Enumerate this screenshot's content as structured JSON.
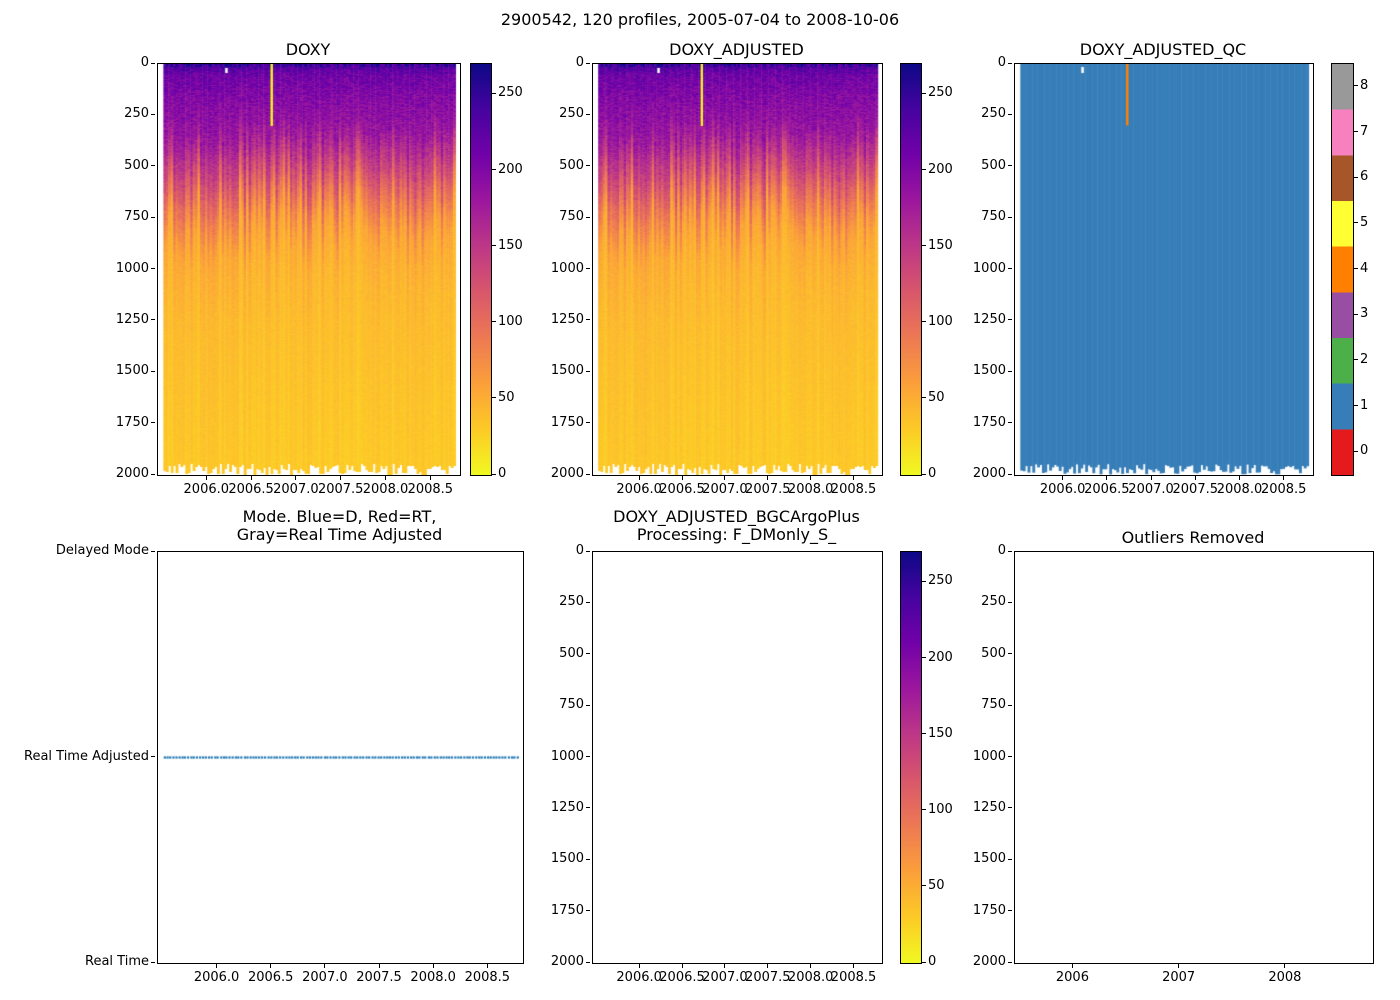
{
  "figure": {
    "suptitle": "2900542, 120 profiles, 2005-07-04 to 2008-10-06"
  },
  "colors": {
    "background": "#ffffff",
    "axis_color": "#000000",
    "plasma_r_stops": [
      "#f0f921",
      "#fdca26",
      "#fb9f3a",
      "#ed7953",
      "#d8576b",
      "#bd3786",
      "#9c179e",
      "#7201a8",
      "#46039f",
      "#0d0887"
    ],
    "qc_palette": [
      "#e41a1c",
      "#377eb8",
      "#4daf4a",
      "#984ea3",
      "#ff7f00",
      "#ffff33",
      "#a65628",
      "#f781bf",
      "#999999"
    ],
    "mode_dot_color": "#1f77b4"
  },
  "chart_data": [
    {
      "type": "heatmap",
      "title": "DOXY",
      "xlim": [
        2005.45,
        2008.82
      ],
      "ylim": [
        2000,
        0
      ],
      "x_ticks": [
        2006.0,
        2006.5,
        2007.0,
        2007.5,
        2008.0,
        2008.5
      ],
      "x_tick_labels": [
        "2006.0",
        "2006.5",
        "2007.0",
        "2007.5",
        "2008.0",
        "2008.5"
      ],
      "y_ticks": [
        0,
        250,
        500,
        750,
        1000,
        1250,
        1500,
        1750,
        2000
      ],
      "y_tick_labels": [
        "0",
        "250",
        "500",
        "750",
        "1000",
        "1250",
        "1500",
        "1750",
        "2000"
      ],
      "n_profiles": 120,
      "time_range": [
        2005.51,
        2008.77
      ],
      "vmin": 0,
      "vmax": 270,
      "colormap": "plasma_r",
      "colorbar_tick_values": [
        0,
        50,
        100,
        150,
        200,
        250
      ],
      "colorbar_tick_labels": [
        "0",
        "50",
        "100",
        "150",
        "200",
        "250"
      ],
      "depth_profile": {
        "depths": [
          0,
          50,
          150,
          300,
          450,
          600,
          750,
          1000,
          1500,
          2000
        ],
        "values": [
          235,
          212,
          198,
          183,
          140,
          92,
          55,
          42,
          34,
          28
        ]
      },
      "anomaly_profile": {
        "x": 2006.72,
        "depth_range": [
          0,
          300
        ],
        "value": 2
      }
    },
    {
      "type": "heatmap",
      "title": "DOXY_ADJUSTED",
      "xlim": [
        2005.45,
        2008.82
      ],
      "ylim": [
        2000,
        0
      ],
      "x_ticks": [
        2006.0,
        2006.5,
        2007.0,
        2007.5,
        2008.0,
        2008.5
      ],
      "x_tick_labels": [
        "2006.0",
        "2006.5",
        "2007.0",
        "2007.5",
        "2008.0",
        "2008.5"
      ],
      "y_ticks": [
        0,
        250,
        500,
        750,
        1000,
        1250,
        1500,
        1750,
        2000
      ],
      "y_tick_labels": [
        "0",
        "250",
        "500",
        "750",
        "1000",
        "1250",
        "1500",
        "1750",
        "2000"
      ],
      "n_profiles": 120,
      "time_range": [
        2005.51,
        2008.77
      ],
      "vmin": 0,
      "vmax": 270,
      "colormap": "plasma_r",
      "colorbar_tick_values": [
        0,
        50,
        100,
        150,
        200,
        250
      ],
      "colorbar_tick_labels": [
        "0",
        "50",
        "100",
        "150",
        "200",
        "250"
      ],
      "depth_profile": {
        "depths": [
          0,
          50,
          150,
          300,
          450,
          600,
          750,
          1000,
          1500,
          2000
        ],
        "values": [
          235,
          212,
          198,
          183,
          140,
          92,
          55,
          42,
          34,
          28
        ]
      },
      "anomaly_profile": {
        "x": 2006.72,
        "depth_range": [
          0,
          300
        ],
        "value": 2
      }
    },
    {
      "type": "heatmap_discrete",
      "title": "DOXY_ADJUSTED_QC",
      "xlim": [
        2005.45,
        2008.82
      ],
      "ylim": [
        2000,
        0
      ],
      "x_ticks": [
        2006.0,
        2006.5,
        2007.0,
        2007.5,
        2008.0,
        2008.5
      ],
      "x_tick_labels": [
        "2006.0",
        "2006.5",
        "2007.0",
        "2007.5",
        "2008.0",
        "2008.5"
      ],
      "y_ticks": [
        0,
        250,
        500,
        750,
        1000,
        1250,
        1500,
        1750,
        2000
      ],
      "y_tick_labels": [
        "0",
        "250",
        "500",
        "750",
        "1000",
        "1250",
        "1500",
        "1750",
        "2000"
      ],
      "n_profiles": 120,
      "time_range": [
        2005.51,
        2008.77
      ],
      "qc_levels": [
        0,
        1,
        2,
        3,
        4,
        5,
        6,
        7,
        8
      ],
      "colorbar_tick_labels": [
        "0",
        "1",
        "2",
        "3",
        "4",
        "5",
        "6",
        "7",
        "8"
      ],
      "dominant_value": 1,
      "anomaly_profile": {
        "x": 2006.72,
        "depth_range": [
          0,
          300
        ],
        "value": 4
      }
    },
    {
      "type": "scatter",
      "title_lines": [
        "Mode. Blue=D, Red=RT,",
        "Gray=Real Time Adjusted"
      ],
      "xlim": [
        2005.45,
        2008.82
      ],
      "x_ticks": [
        2006.0,
        2006.5,
        2007.0,
        2007.5,
        2008.0,
        2008.5
      ],
      "x_tick_labels": [
        "2006.0",
        "2006.5",
        "2007.0",
        "2007.5",
        "2008.0",
        "2008.5"
      ],
      "y_categories": [
        "Real Time",
        "Real Time Adjusted",
        "Delayed Mode"
      ],
      "series": [
        {
          "name": "profile-mode",
          "category": "Real Time Adjusted",
          "x_start": 2005.51,
          "x_end": 2008.77,
          "count": 120,
          "color": "#1f77b4"
        }
      ]
    },
    {
      "type": "heatmap",
      "empty": true,
      "title_lines": [
        "DOXY_ADJUSTED_BGCArgoPlus",
        "Processing: F_DMonly_S_"
      ],
      "xlim": [
        2005.45,
        2008.82
      ],
      "ylim": [
        2000,
        0
      ],
      "x_ticks": [
        2006.0,
        2006.5,
        2007.0,
        2007.5,
        2008.0,
        2008.5
      ],
      "x_tick_labels": [
        "2006.0",
        "2006.5",
        "2007.0",
        "2007.5",
        "2008.0",
        "2008.5"
      ],
      "y_ticks": [
        0,
        250,
        500,
        750,
        1000,
        1250,
        1500,
        1750,
        2000
      ],
      "y_tick_labels": [
        "0",
        "250",
        "500",
        "750",
        "1000",
        "1250",
        "1500",
        "1750",
        "2000"
      ],
      "vmin": 0,
      "vmax": 270,
      "colormap": "plasma_r",
      "colorbar_tick_values": [
        0,
        50,
        100,
        150,
        200,
        250
      ],
      "colorbar_tick_labels": [
        "0",
        "50",
        "100",
        "150",
        "200",
        "250"
      ]
    },
    {
      "type": "empty",
      "title": "Outliers Removed",
      "xlim": [
        2005.45,
        2008.82
      ],
      "ylim": [
        2000,
        0
      ],
      "x_ticks": [
        2006,
        2007,
        2008
      ],
      "x_tick_labels": [
        "2006",
        "2007",
        "2008"
      ],
      "y_ticks": [
        0,
        250,
        500,
        750,
        1000,
        1250,
        1500,
        1750,
        2000
      ],
      "y_tick_labels": [
        "0",
        "250",
        "500",
        "750",
        "1000",
        "1250",
        "1500",
        "1750",
        "2000"
      ]
    }
  ]
}
